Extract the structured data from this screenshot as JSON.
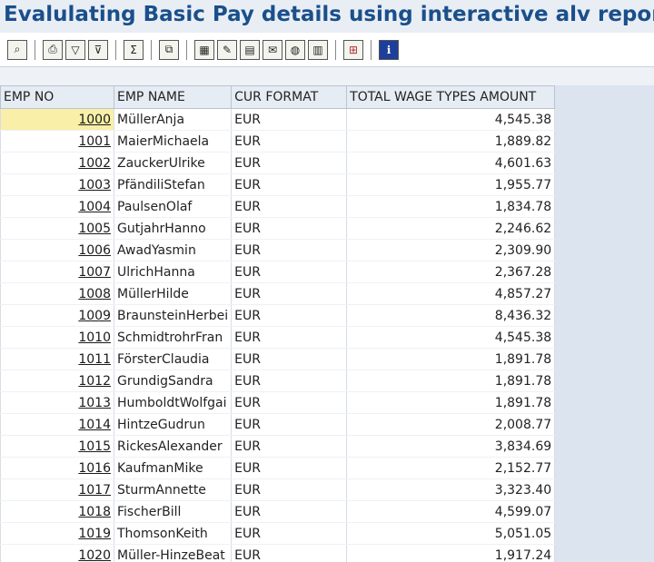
{
  "page": {
    "title": "Evalulating Basic Pay details using interactive alv report"
  },
  "toolbar": {
    "groups": [
      [
        "search-icon"
      ],
      [
        "print-icon",
        "filter-icon",
        "delete-filter-icon"
      ],
      [
        "sum-icon"
      ],
      [
        "subtotal-icon"
      ],
      [
        "spreadsheet-icon",
        "word-processing-icon",
        "local-file-icon",
        "mail-icon",
        "abc-analysis-icon",
        "graphic-icon"
      ],
      [
        "layout-icon"
      ],
      [
        "information-icon"
      ]
    ]
  },
  "table": {
    "columns": {
      "emp_no": "EMP NO",
      "emp_name": "EMP NAME",
      "cur_format": "CUR FORMAT",
      "total": "TOTAL WAGE TYPES AMOUNT"
    },
    "rows": [
      {
        "emp_no": "1000",
        "name": "MüllerAnja",
        "cur": "EUR",
        "amount": "4,545.38"
      },
      {
        "emp_no": "1001",
        "name": "MaierMichaela",
        "cur": "EUR",
        "amount": "1,889.82"
      },
      {
        "emp_no": "1002",
        "name": "ZauckerUlrike",
        "cur": "EUR",
        "amount": "4,601.63"
      },
      {
        "emp_no": "1003",
        "name": "PfändiliStefan",
        "cur": "EUR",
        "amount": "1,955.77"
      },
      {
        "emp_no": "1004",
        "name": "PaulsenOlaf",
        "cur": "EUR",
        "amount": "1,834.78"
      },
      {
        "emp_no": "1005",
        "name": "GutjahrHanno",
        "cur": "EUR",
        "amount": "2,246.62"
      },
      {
        "emp_no": "1006",
        "name": "AwadYasmin",
        "cur": "EUR",
        "amount": "2,309.90"
      },
      {
        "emp_no": "1007",
        "name": "UlrichHanna",
        "cur": "EUR",
        "amount": "2,367.28"
      },
      {
        "emp_no": "1008",
        "name": "MüllerHilde",
        "cur": "EUR",
        "amount": "4,857.27"
      },
      {
        "emp_no": "1009",
        "name": "BraunsteinHerbei",
        "cur": "EUR",
        "amount": "8,436.32"
      },
      {
        "emp_no": "1010",
        "name": "SchmidtrohrFran",
        "cur": "EUR",
        "amount": "4,545.38"
      },
      {
        "emp_no": "1011",
        "name": "FörsterClaudia",
        "cur": "EUR",
        "amount": "1,891.78"
      },
      {
        "emp_no": "1012",
        "name": "GrundigSandra",
        "cur": "EUR",
        "amount": "1,891.78"
      },
      {
        "emp_no": "1013",
        "name": "HumboldtWolfgai",
        "cur": "EUR",
        "amount": "1,891.78"
      },
      {
        "emp_no": "1014",
        "name": "HintzeGudrun",
        "cur": "EUR",
        "amount": "2,008.77"
      },
      {
        "emp_no": "1015",
        "name": "RickesAlexander",
        "cur": "EUR",
        "amount": "3,834.69"
      },
      {
        "emp_no": "1016",
        "name": "KaufmanMike",
        "cur": "EUR",
        "amount": "2,152.77"
      },
      {
        "emp_no": "1017",
        "name": "SturmAnnette",
        "cur": "EUR",
        "amount": "3,323.40"
      },
      {
        "emp_no": "1018",
        "name": "FischerBill",
        "cur": "EUR",
        "amount": "4,599.07"
      },
      {
        "emp_no": "1019",
        "name": "ThomsonKeith",
        "cur": "EUR",
        "amount": "5,051.05"
      },
      {
        "emp_no": "1020",
        "name": "Müller-HinzeBeat",
        "cur": "EUR",
        "amount": "1,917.24"
      }
    ]
  }
}
